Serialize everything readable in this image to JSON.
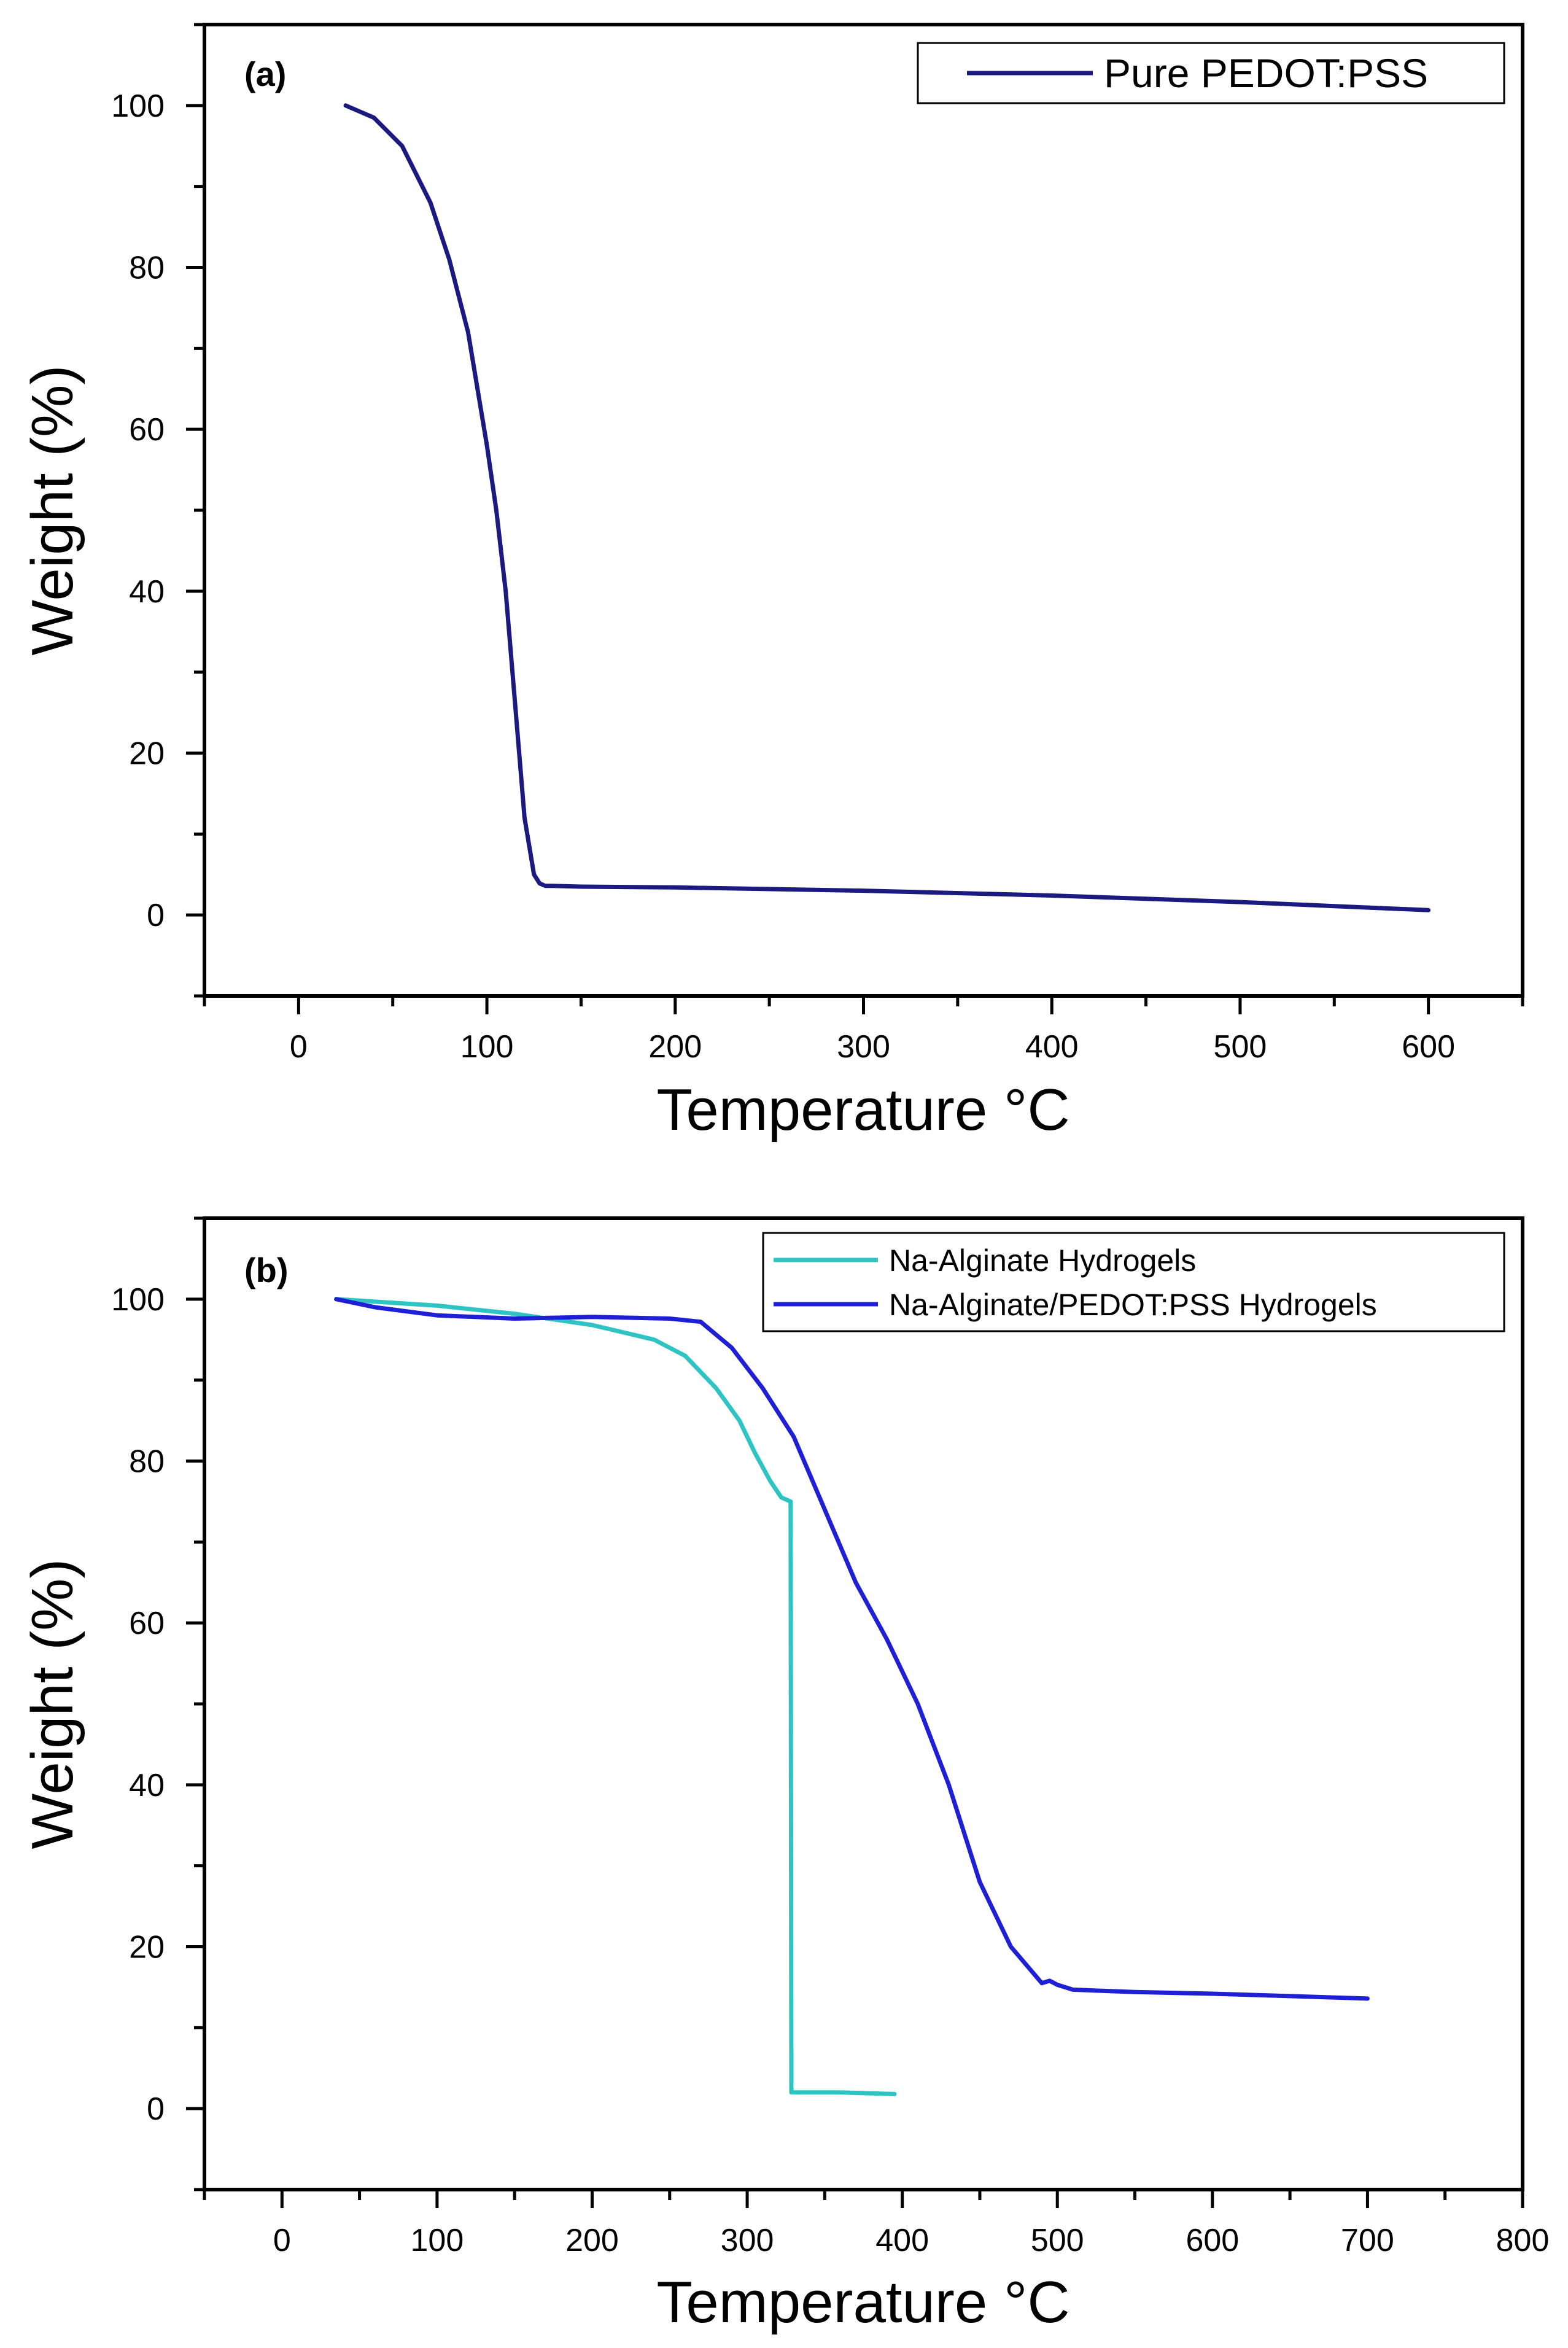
{
  "chart_data": [
    {
      "panel": "(a)",
      "type": "line",
      "title": "",
      "xlabel": "Temperature °C",
      "ylabel": "Weight (%)",
      "xlim": [
        -50,
        650
      ],
      "ylim": [
        -10,
        110
      ],
      "xticks": [
        0,
        100,
        200,
        300,
        400,
        500,
        600
      ],
      "yticks": [
        0,
        20,
        40,
        60,
        80,
        100
      ],
      "legend_position": "top-right",
      "series": [
        {
          "name": "Pure PEDOT:PSS",
          "color": "#1a1a80",
          "x": [
            25,
            40,
            55,
            70,
            80,
            90,
            100,
            105,
            110,
            115,
            120,
            125,
            128,
            131,
            135,
            150,
            200,
            300,
            400,
            500,
            600
          ],
          "y": [
            100,
            98.5,
            95,
            88,
            81,
            72,
            58,
            50,
            40,
            26,
            12,
            5,
            3.9,
            3.6,
            3.6,
            3.5,
            3.4,
            3.0,
            2.4,
            1.6,
            0.6
          ]
        }
      ]
    },
    {
      "panel": "(b)",
      "type": "line",
      "title": "",
      "xlabel": "Temperature °C",
      "ylabel": "Weight (%)",
      "xlim": [
        -50,
        800
      ],
      "ylim": [
        -10,
        110
      ],
      "xticks": [
        0,
        100,
        200,
        300,
        400,
        500,
        600,
        700,
        800
      ],
      "yticks": [
        0,
        20,
        40,
        60,
        80,
        100
      ],
      "legend_position": "top-right",
      "series": [
        {
          "name": "Na-Alginate Hydrogels",
          "color": "#2ec4c4",
          "x": [
            35,
            100,
            150,
            200,
            240,
            260,
            280,
            295,
            305,
            315,
            322,
            328,
            328.5,
            330,
            360,
            395
          ],
          "y": [
            100,
            99.2,
            98.2,
            96.8,
            95,
            93,
            89,
            85,
            81,
            77.5,
            75.5,
            75,
            2,
            2,
            2,
            1.8
          ]
        },
        {
          "name": "Na-Alginate/PEDOT:PSS Hydrogels",
          "color": "#1f1fd6",
          "x": [
            35,
            60,
            100,
            150,
            200,
            250,
            270,
            290,
            310,
            330,
            350,
            370,
            390,
            410,
            430,
            450,
            470,
            490,
            495,
            500,
            510,
            550,
            600,
            650,
            700
          ],
          "y": [
            100,
            99,
            98,
            97.6,
            97.8,
            97.6,
            97.2,
            94,
            89,
            83,
            74,
            65,
            58,
            50,
            40,
            28,
            20,
            15.5,
            15.8,
            15.3,
            14.7,
            14.4,
            14.2,
            13.9,
            13.6
          ]
        }
      ]
    }
  ]
}
